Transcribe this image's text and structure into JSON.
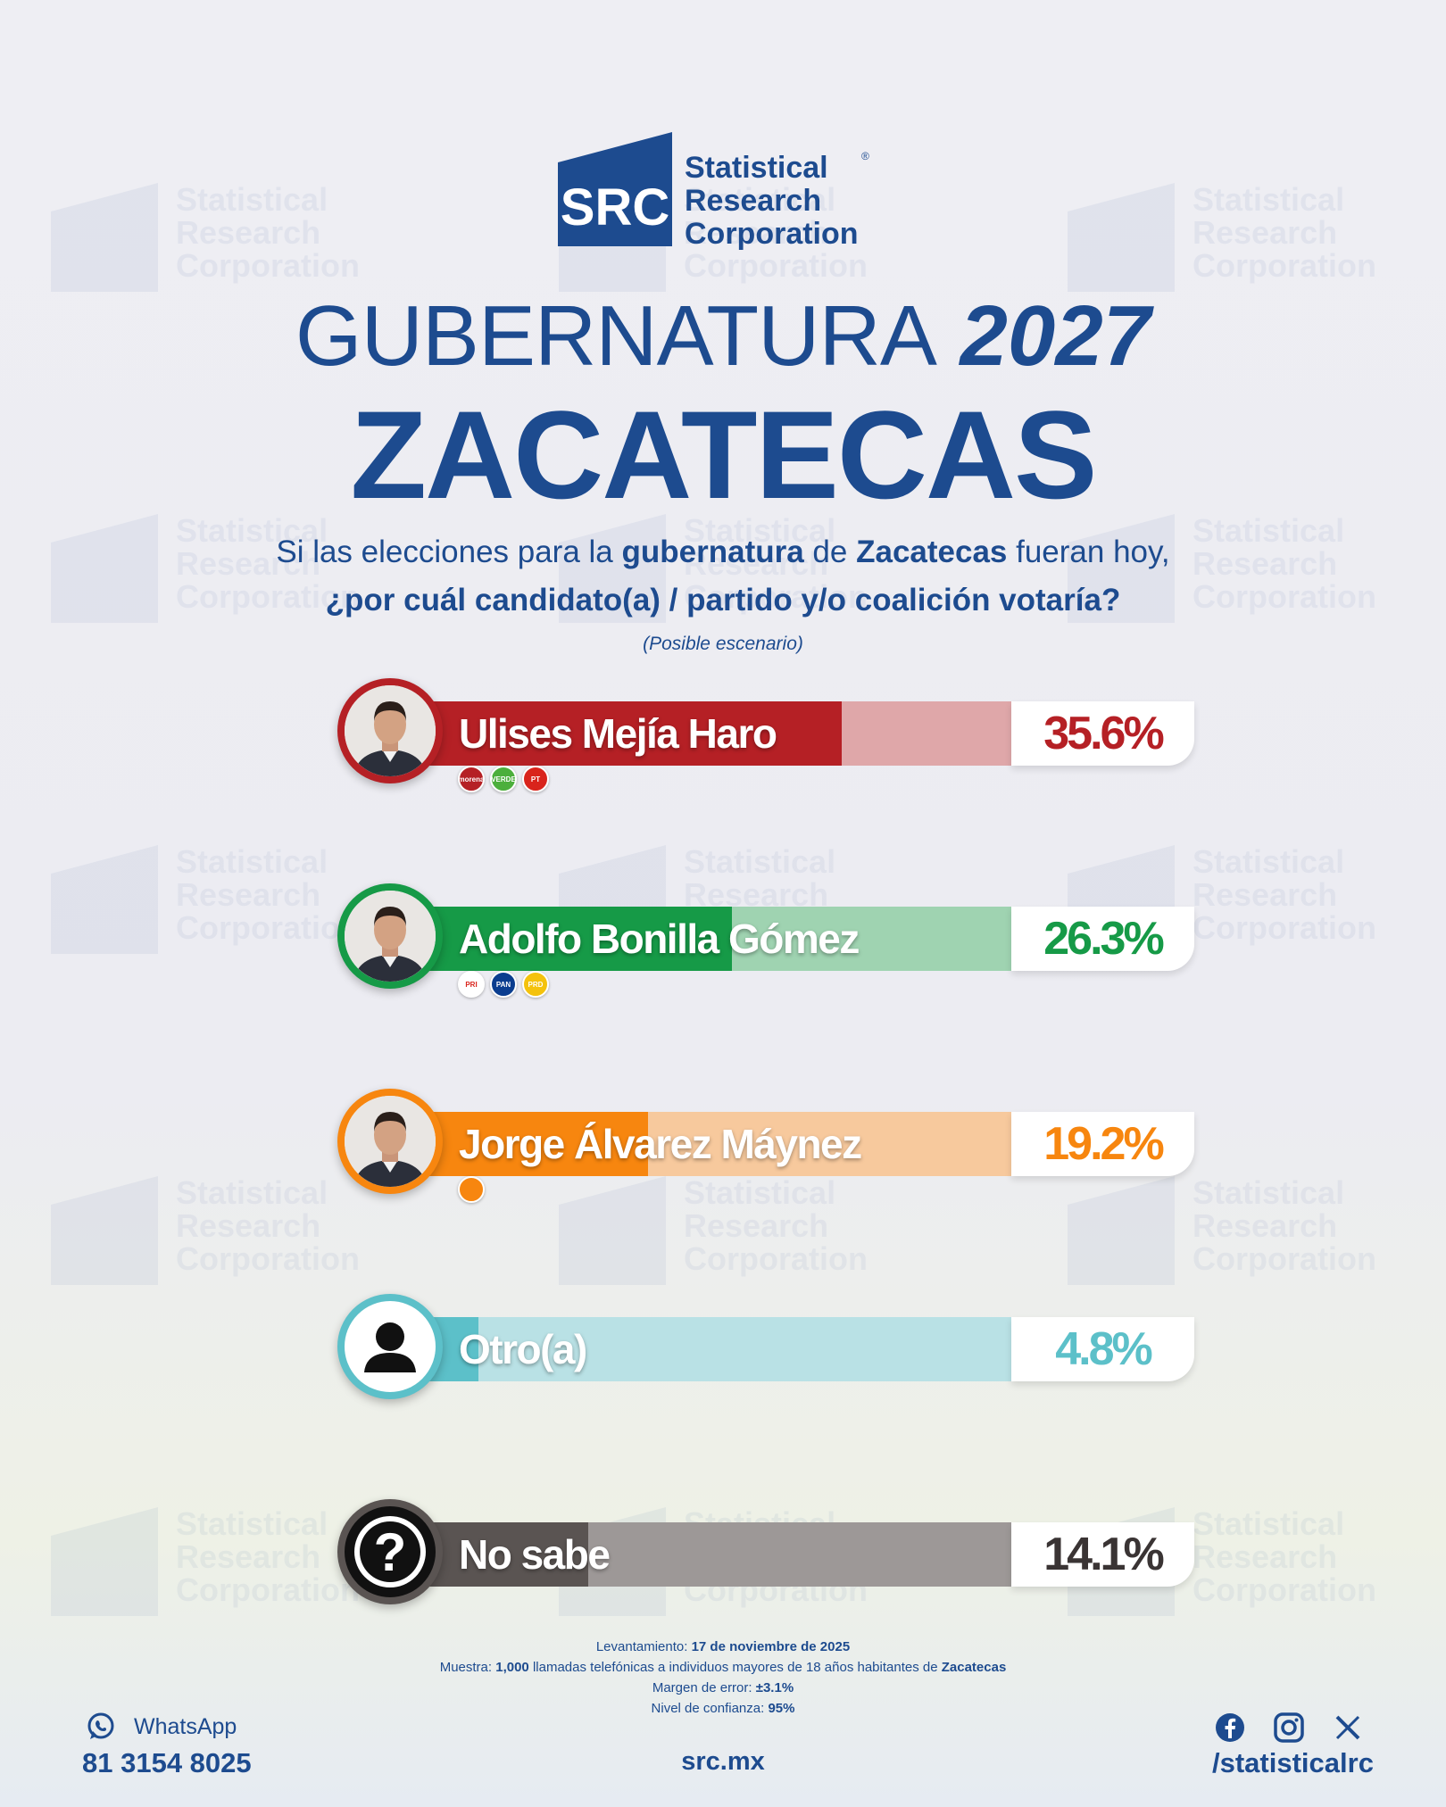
{
  "brand": {
    "logo_letters": "SRC",
    "name_lines": [
      "Statistical",
      "Research",
      "Corporation"
    ],
    "registered": "®",
    "primary_color": "#1d4b8f"
  },
  "header": {
    "title_light": "GUBERNATURA",
    "title_bold": "2027",
    "state": "ZACATECAS"
  },
  "question": {
    "line1_a": "Si las elecciones para la ",
    "line1_b": "gubernatura",
    "line1_c": " de ",
    "line1_d": "Zacatecas",
    "line1_e": " fueran hoy,",
    "line2": "¿por cuál candidato(a) / partido y/o coalición votaría?",
    "scenario": "(Posible escenario)"
  },
  "chart_data": {
    "type": "bar",
    "categories": [
      "Ulises Mejía Haro",
      "Adolfo Bonilla Gómez",
      "Jorge Álvarez Máynez",
      "Otro(a)",
      "No sabe"
    ],
    "values": [
      35.6,
      26.3,
      19.2,
      4.8,
      14.1
    ],
    "value_labels": [
      "35.6%",
      "26.3%",
      "19.2%",
      "4.8%",
      "14.1%"
    ],
    "unit": "%",
    "ylim": [
      0,
      50
    ],
    "colors": [
      "#b52025",
      "#169a47",
      "#f7860f",
      "#5cc0c9",
      "#5a5452"
    ],
    "track_colors": [
      "#dfa7a9",
      "#9fd3b1",
      "#f7c99d",
      "#b9e1e5",
      "#9d9897"
    ],
    "pct_colors": [
      "#b52025",
      "#169a47",
      "#f7860f",
      "#5cc0c9",
      "#3a3434"
    ],
    "avatars": [
      "candidate-photo",
      "candidate-photo",
      "candidate-photo",
      "person-icon",
      "question-icon"
    ],
    "parties": [
      [
        {
          "label": "morena",
          "color": "#b52025"
        },
        {
          "label": "VERDE",
          "color": "#4caf3c"
        },
        {
          "label": "PT",
          "color": "#d9241c"
        }
      ],
      [
        {
          "label": "PRI",
          "color": "#ffffff"
        },
        {
          "label": "PAN",
          "color": "#0a3d8f"
        },
        {
          "label": "PRD",
          "color": "#f4c20d"
        }
      ],
      [
        {
          "label": "",
          "color": "#f7860f"
        }
      ],
      [],
      []
    ]
  },
  "methodology": {
    "survey_label": "Levantamiento: ",
    "survey_date": "17 de noviembre de 2025",
    "sample_label": "Muestra: ",
    "sample_size": "1,000",
    "sample_text": " llamadas telefónicas a individuos mayores de 18 años habitantes de ",
    "sample_place": "Zacatecas",
    "margin_label": "Margen de error: ",
    "margin_value": "±3.1%",
    "confidence_label": "Nivel de confianza: ",
    "confidence_value": "95%"
  },
  "footer": {
    "whatsapp_label": "WhatsApp",
    "phone": "81 3154 8025",
    "website": "src.mx",
    "social_handle": "/statisticalrc",
    "social_icons": [
      "facebook-icon",
      "instagram-icon",
      "x-icon"
    ]
  }
}
